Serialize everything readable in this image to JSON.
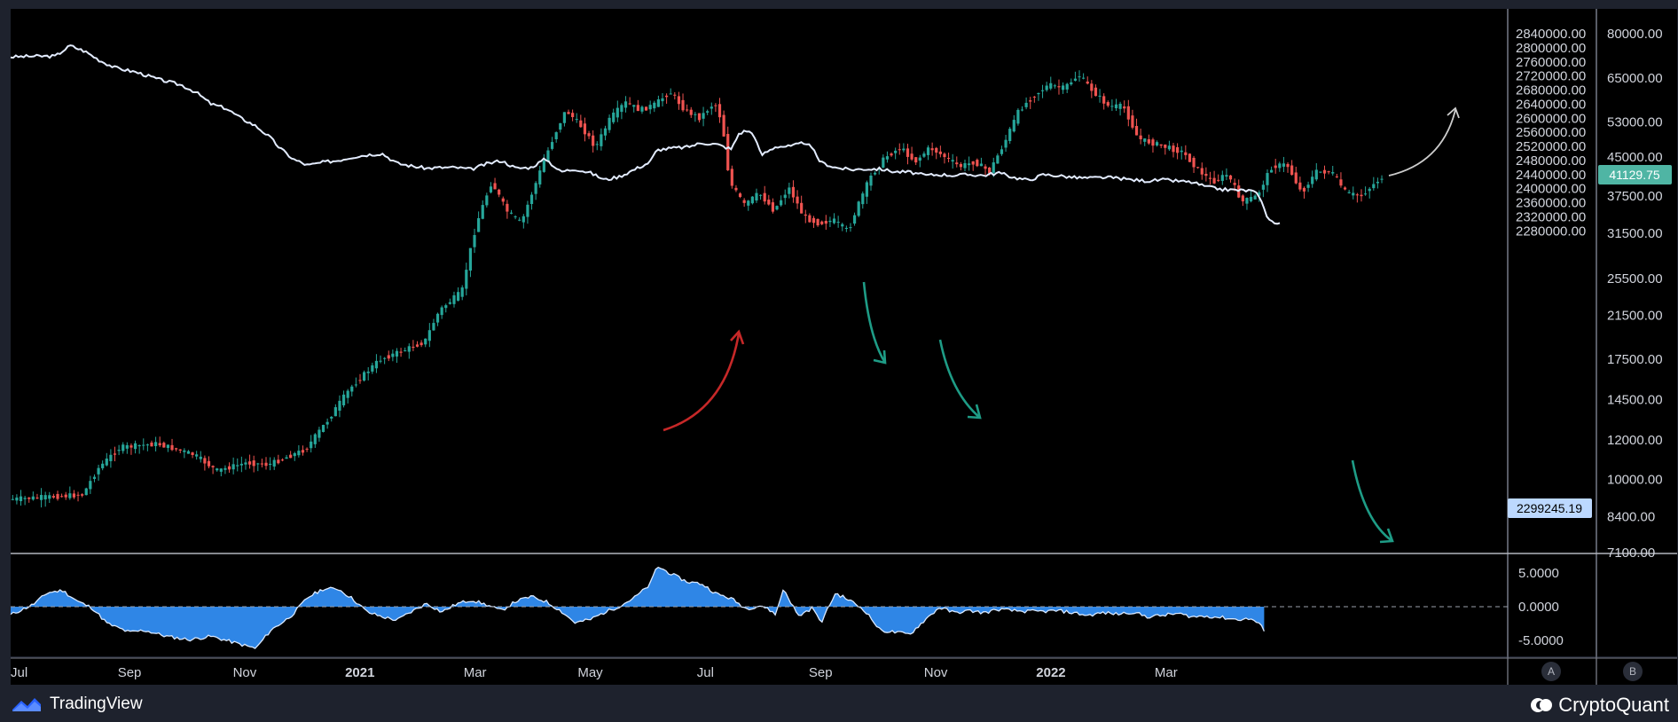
{
  "chart_data": [
    {
      "type": "candlestick+line",
      "title": "",
      "x_ticks": [
        "Jul",
        "Sep",
        "Nov",
        "2021",
        "Mar",
        "May",
        "Jul",
        "Sep",
        "Nov",
        "2022",
        "Mar"
      ],
      "y_left_ticks": [
        "2840000.00",
        "2800000.00",
        "2760000.00",
        "2720000.00",
        "2680000.00",
        "2640000.00",
        "2600000.00",
        "2560000.00",
        "2520000.00",
        "2480000.00",
        "2440000.00",
        "2400000.00",
        "2360000.00",
        "2320000.00",
        "2280000.00"
      ],
      "y_right_ticks": [
        "80000.00",
        "65000.00",
        "53000.00",
        "45000.00",
        "37500.00",
        "31500.00",
        "25500.00",
        "21500.00",
        "17500.00",
        "14500.00",
        "12000.00",
        "10000.00",
        "8400.00",
        "7100.00"
      ],
      "y_right_scale": "log",
      "price_label": "41129.75",
      "line_label": "2299245.19",
      "price_series": {
        "name": "",
        "values": [
          [
            0,
            9100
          ],
          [
            5,
            9200
          ],
          [
            10,
            9300
          ],
          [
            12,
            10500
          ],
          [
            15,
            11600
          ],
          [
            20,
            11800
          ],
          [
            25,
            11200
          ],
          [
            28,
            10400
          ],
          [
            32,
            10800
          ],
          [
            35,
            10700
          ],
          [
            40,
            11500
          ],
          [
            43,
            13200
          ],
          [
            46,
            15300
          ],
          [
            50,
            17500
          ],
          [
            53,
            18200
          ],
          [
            56,
            19000
          ],
          [
            58,
            22000
          ],
          [
            61,
            24000
          ],
          [
            63,
            33000
          ],
          [
            65,
            40000
          ],
          [
            67,
            35000
          ],
          [
            69,
            33000
          ],
          [
            71,
            40000
          ],
          [
            73,
            48000
          ],
          [
            75,
            56000
          ],
          [
            77,
            52000
          ],
          [
            79,
            47000
          ],
          [
            81,
            54000
          ],
          [
            83,
            58000
          ],
          [
            85,
            56000
          ],
          [
            87,
            57500
          ],
          [
            89,
            61000
          ],
          [
            91,
            56000
          ],
          [
            93,
            54000
          ],
          [
            95,
            58000
          ],
          [
            96,
            53000
          ],
          [
            97,
            40000
          ],
          [
            99,
            36000
          ],
          [
            101,
            38000
          ],
          [
            103,
            35000
          ],
          [
            105,
            39000
          ],
          [
            107,
            34000
          ],
          [
            109,
            33000
          ],
          [
            111,
            33500
          ],
          [
            113,
            31800
          ],
          [
            114,
            35000
          ],
          [
            116,
            41000
          ],
          [
            118,
            45000
          ],
          [
            120,
            47000
          ],
          [
            122,
            44000
          ],
          [
            124,
            47000
          ],
          [
            126,
            45000
          ],
          [
            128,
            43000
          ],
          [
            130,
            44000
          ],
          [
            132,
            42000
          ],
          [
            134,
            48000
          ],
          [
            136,
            56000
          ],
          [
            138,
            60000
          ],
          [
            140,
            63000
          ],
          [
            142,
            62000
          ],
          [
            144,
            66000
          ],
          [
            146,
            61000
          ],
          [
            148,
            57000
          ],
          [
            150,
            57000
          ],
          [
            152,
            49000
          ],
          [
            154,
            48000
          ],
          [
            156,
            47000
          ],
          [
            158,
            46000
          ],
          [
            160,
            42500
          ],
          [
            162,
            40000
          ],
          [
            164,
            41500
          ],
          [
            166,
            36500
          ],
          [
            168,
            37500
          ],
          [
            170,
            43000
          ],
          [
            172,
            43500
          ],
          [
            174,
            38000
          ],
          [
            176,
            42000
          ],
          [
            178,
            42000
          ],
          [
            180,
            38000
          ],
          [
            182,
            37500
          ],
          [
            184,
            40000
          ],
          [
            185,
            41130
          ]
        ]
      },
      "line_series": {
        "name": "",
        "values": [
          [
            0,
            2774000
          ],
          [
            3,
            2776000
          ],
          [
            6,
            2776000
          ],
          [
            8,
            2806000
          ],
          [
            10,
            2790000
          ],
          [
            12,
            2764000
          ],
          [
            14,
            2744000
          ],
          [
            17,
            2730000
          ],
          [
            20,
            2710000
          ],
          [
            23,
            2694000
          ],
          [
            25,
            2673000
          ],
          [
            27,
            2640000
          ],
          [
            29,
            2628000
          ],
          [
            31,
            2600000
          ],
          [
            33,
            2578000
          ],
          [
            35,
            2544000
          ],
          [
            36,
            2520000
          ],
          [
            38,
            2484000
          ],
          [
            40,
            2466000
          ],
          [
            42,
            2475000
          ],
          [
            44,
            2480000
          ],
          [
            46,
            2490000
          ],
          [
            48,
            2496000
          ],
          [
            50,
            2500000
          ],
          [
            52,
            2472000
          ],
          [
            54,
            2464000
          ],
          [
            56,
            2458000
          ],
          [
            58,
            2460000
          ],
          [
            60,
            2460000
          ],
          [
            62,
            2455000
          ],
          [
            64,
            2470000
          ],
          [
            66,
            2480000
          ],
          [
            68,
            2458000
          ],
          [
            70,
            2460000
          ],
          [
            72,
            2485000
          ],
          [
            74,
            2448000
          ],
          [
            76,
            2456000
          ],
          [
            78,
            2445000
          ],
          [
            80,
            2425000
          ],
          [
            82,
            2435000
          ],
          [
            84,
            2455000
          ],
          [
            86,
            2475000
          ],
          [
            87,
            2510000
          ],
          [
            89,
            2515000
          ],
          [
            91,
            2518000
          ],
          [
            93,
            2530000
          ],
          [
            95,
            2526000
          ],
          [
            97,
            2512000
          ],
          [
            98,
            2556000
          ],
          [
            99,
            2565000
          ],
          [
            100,
            2555000
          ],
          [
            101,
            2495000
          ],
          [
            103,
            2520000
          ],
          [
            105,
            2520000
          ],
          [
            107,
            2532000
          ],
          [
            108,
            2510000
          ],
          [
            109,
            2475000
          ],
          [
            111,
            2460000
          ],
          [
            113,
            2454000
          ],
          [
            115,
            2456000
          ],
          [
            117,
            2456000
          ],
          [
            119,
            2448000
          ],
          [
            121,
            2447000
          ],
          [
            123,
            2438000
          ],
          [
            125,
            2440000
          ],
          [
            127,
            2438000
          ],
          [
            129,
            2440000
          ],
          [
            131,
            2438000
          ],
          [
            133,
            2445000
          ],
          [
            135,
            2432000
          ],
          [
            137,
            2424000
          ],
          [
            139,
            2440000
          ],
          [
            141,
            2437000
          ],
          [
            143,
            2432000
          ],
          [
            145,
            2430000
          ],
          [
            147,
            2432000
          ],
          [
            149,
            2430000
          ],
          [
            151,
            2425000
          ],
          [
            153,
            2422000
          ],
          [
            155,
            2425000
          ],
          [
            157,
            2422000
          ],
          [
            159,
            2418000
          ],
          [
            161,
            2405000
          ],
          [
            163,
            2398000
          ],
          [
            165,
            2396000
          ],
          [
            167,
            2394000
          ],
          [
            168,
            2381000
          ],
          [
            169,
            2325000
          ],
          [
            170,
            2302000
          ],
          [
            171,
            2299000
          ]
        ]
      }
    },
    {
      "type": "area",
      "title": "",
      "y_ticks": [
        "5.0000",
        "0.0000",
        "-5.0000"
      ],
      "series": {
        "name": "",
        "values": [
          [
            0,
            -1.2
          ],
          [
            3,
            0.3
          ],
          [
            5,
            2.1
          ],
          [
            7,
            2.4
          ],
          [
            9,
            0.8
          ],
          [
            11,
            -0.2
          ],
          [
            13,
            -2.5
          ],
          [
            16,
            -3.8
          ],
          [
            18,
            -3.5
          ],
          [
            21,
            -4.4
          ],
          [
            24,
            -4.9
          ],
          [
            27,
            -4.4
          ],
          [
            30,
            -5.3
          ],
          [
            33,
            -6.2
          ],
          [
            35,
            -3.5
          ],
          [
            37,
            -2.0
          ],
          [
            38,
            -1.1
          ],
          [
            40,
            1.4
          ],
          [
            42,
            2.6
          ],
          [
            44,
            2.7
          ],
          [
            46,
            1.2
          ],
          [
            48,
            -0.8
          ],
          [
            50,
            -1.5
          ],
          [
            52,
            -2.0
          ],
          [
            54,
            -0.7
          ],
          [
            56,
            0.5
          ],
          [
            58,
            -0.8
          ],
          [
            60,
            0.4
          ],
          [
            62,
            1.0
          ],
          [
            64,
            0.3
          ],
          [
            66,
            -0.6
          ],
          [
            68,
            0.8
          ],
          [
            70,
            1.5
          ],
          [
            72,
            0.8
          ],
          [
            74,
            -0.6
          ],
          [
            76,
            -2.4
          ],
          [
            78,
            -1.9
          ],
          [
            80,
            -0.8
          ],
          [
            82,
            0.1
          ],
          [
            84,
            1.4
          ],
          [
            86,
            3.2
          ],
          [
            87,
            6.0
          ],
          [
            89,
            4.8
          ],
          [
            91,
            3.7
          ],
          [
            93,
            3.4
          ],
          [
            95,
            1.9
          ],
          [
            97,
            1.2
          ],
          [
            99,
            -0.3
          ],
          [
            101,
            0.2
          ],
          [
            103,
            -1.1
          ],
          [
            104,
            2.7
          ],
          [
            106,
            -1.4
          ],
          [
            108,
            -0.1
          ],
          [
            109,
            -2.5
          ],
          [
            111,
            2.0
          ],
          [
            113,
            0.9
          ],
          [
            115,
            -0.6
          ],
          [
            117,
            -3.5
          ],
          [
            119,
            -3.8
          ],
          [
            121,
            -4.1
          ],
          [
            123,
            -2.0
          ],
          [
            125,
            -0.1
          ],
          [
            127,
            -0.9
          ],
          [
            129,
            -0.6
          ],
          [
            131,
            -0.9
          ],
          [
            133,
            -0.4
          ],
          [
            135,
            -0.6
          ],
          [
            137,
            -0.7
          ],
          [
            139,
            -0.7
          ],
          [
            141,
            -0.6
          ],
          [
            143,
            -0.9
          ],
          [
            145,
            -1.3
          ],
          [
            147,
            -0.9
          ],
          [
            149,
            -1.1
          ],
          [
            151,
            -0.8
          ],
          [
            153,
            -1.5
          ],
          [
            155,
            -1.3
          ],
          [
            157,
            -1.0
          ],
          [
            159,
            -1.5
          ],
          [
            161,
            -1.4
          ],
          [
            163,
            -1.6
          ],
          [
            165,
            -1.9
          ],
          [
            167,
            -1.8
          ],
          [
            168,
            -2.6
          ],
          [
            169,
            -3.8
          ]
        ]
      }
    }
  ],
  "branding": {
    "left": "TradingView",
    "right": "CryptoQuant"
  },
  "axis_buttons": [
    "A",
    "B"
  ],
  "colors": {
    "background": "#000000",
    "frame": "#1e222d",
    "candle_up": "#26a69a",
    "candle_down": "#ef5350",
    "line": "#e3ecff",
    "area": "#2f86e6",
    "price_badge": "#4fb5a4",
    "line_badge": "#bcd8ff",
    "arrow_red": "#c62828",
    "arrow_teal": "#1e9c86",
    "arrow_gray": "#cccccc"
  }
}
